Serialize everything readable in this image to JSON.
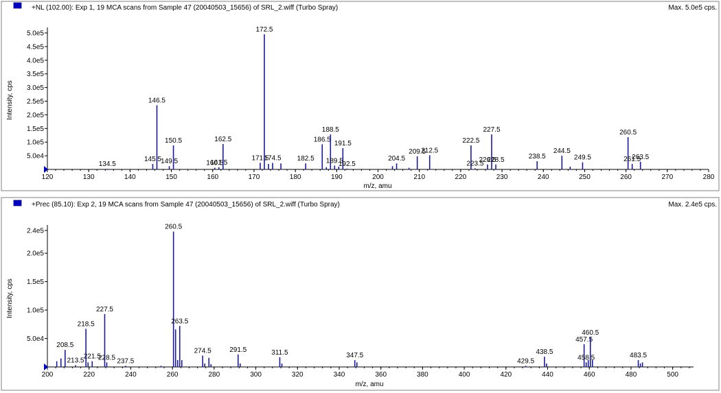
{
  "colors": {
    "stick": "#1a1a9a",
    "marker": "#0000c0",
    "panel_border": "#808080",
    "frame": "#000000"
  },
  "panels": [
    {
      "title": "+NL (102.00): Exp 1, 19 MCA scans from Sample 47 (20040503_15656) of SRL_2.wiff (Turbo Spray)",
      "max_text": "Max. 5.0e5 cps.",
      "ylabel": "Intensity, cps",
      "xlabel": "m/z, amu"
    },
    {
      "title": "+Prec (85.10): Exp 2, 19 MCA scans from Sample 47 (20040503_15656) of SRL_2.wiff (Turbo Spray)",
      "max_text": "Max. 2.4e5 cps.",
      "ylabel": "Intensity, cps",
      "xlabel": "m/z, amu"
    }
  ],
  "chart_data": [
    {
      "type": "bar",
      "subtype": "mass-spectrum-stick",
      "xlabel": "m/z, amu",
      "ylabel": "Intensity, cps",
      "xlim": [
        120,
        280
      ],
      "ylim": [
        0,
        500000
      ],
      "xticks": [
        120,
        130,
        140,
        150,
        160,
        170,
        180,
        190,
        200,
        210,
        220,
        230,
        240,
        250,
        260,
        270,
        280
      ],
      "xtick_labels": [
        "120",
        "130",
        "140",
        "150",
        "160",
        "170",
        "180",
        "190",
        "200",
        "210",
        "220",
        "230",
        "240",
        "250",
        "260",
        "270",
        "280"
      ],
      "yticks": [
        50000,
        100000,
        150000,
        200000,
        250000,
        300000,
        350000,
        400000,
        450000,
        500000
      ],
      "ytick_labels": [
        "5.0e4",
        "1.0e5",
        "1.5e5",
        "2.0e5",
        "2.5e5",
        "3.0e5",
        "3.5e5",
        "4.0e5",
        "4.5e5",
        "5.0e5"
      ],
      "peaks": [
        {
          "x": 134.5,
          "y": 2000,
          "label": "134.5"
        },
        {
          "x": 145.5,
          "y": 20000,
          "label": "145.5"
        },
        {
          "x": 146.5,
          "y": 235000,
          "label": "146.5"
        },
        {
          "x": 149.5,
          "y": 12000,
          "label": "149.5"
        },
        {
          "x": 150.5,
          "y": 88000,
          "label": "150.5"
        },
        {
          "x": 160.5,
          "y": 6000,
          "label": "160.5"
        },
        {
          "x": 161.5,
          "y": 8000,
          "label": "161.5"
        },
        {
          "x": 162.5,
          "y": 93000,
          "label": "162.5"
        },
        {
          "x": 171.5,
          "y": 24000,
          "label": "171.5"
        },
        {
          "x": 172.5,
          "y": 495000,
          "label": "172.5"
        },
        {
          "x": 173.5,
          "y": 20000,
          "label": ""
        },
        {
          "x": 174.5,
          "y": 24000,
          "label": "174.5"
        },
        {
          "x": 176.5,
          "y": 22000,
          "label": ""
        },
        {
          "x": 182.5,
          "y": 22000,
          "label": "182.5"
        },
        {
          "x": 186.5,
          "y": 92000,
          "label": "186.5"
        },
        {
          "x": 187.5,
          "y": 8000,
          "label": ""
        },
        {
          "x": 188.5,
          "y": 128000,
          "label": "188.5"
        },
        {
          "x": 189.5,
          "y": 14000,
          "label": "189.5"
        },
        {
          "x": 190.5,
          "y": 10000,
          "label": ""
        },
        {
          "x": 191.5,
          "y": 78000,
          "label": "191.5"
        },
        {
          "x": 192.5,
          "y": 3000,
          "label": "192.5"
        },
        {
          "x": 203.5,
          "y": 12000,
          "label": ""
        },
        {
          "x": 204.5,
          "y": 22000,
          "label": "204.5"
        },
        {
          "x": 207.5,
          "y": 6000,
          "label": ""
        },
        {
          "x": 209.5,
          "y": 48000,
          "label": "209.5"
        },
        {
          "x": 212.5,
          "y": 52000,
          "label": "212.5"
        },
        {
          "x": 222.5,
          "y": 88000,
          "label": "222.5"
        },
        {
          "x": 223.5,
          "y": 4000,
          "label": "223.5"
        },
        {
          "x": 226.5,
          "y": 18000,
          "label": "226.5"
        },
        {
          "x": 227.5,
          "y": 128000,
          "label": "227.5"
        },
        {
          "x": 228.5,
          "y": 18000,
          "label": "228.5"
        },
        {
          "x": 238.5,
          "y": 30000,
          "label": "238.5"
        },
        {
          "x": 244.5,
          "y": 50000,
          "label": "244.5"
        },
        {
          "x": 246.5,
          "y": 10000,
          "label": ""
        },
        {
          "x": 249.5,
          "y": 26000,
          "label": "249.5"
        },
        {
          "x": 260.5,
          "y": 118000,
          "label": "260.5"
        },
        {
          "x": 261.5,
          "y": 20000,
          "label": "261.5"
        },
        {
          "x": 263.5,
          "y": 28000,
          "label": "263.5"
        }
      ]
    },
    {
      "type": "bar",
      "subtype": "mass-spectrum-stick",
      "xlabel": "m/z, amu",
      "ylabel": "Intensity, cps",
      "xlim": [
        200,
        510
      ],
      "ylim": [
        0,
        240000
      ],
      "xticks": [
        200,
        220,
        240,
        260,
        280,
        300,
        320,
        340,
        360,
        380,
        400,
        420,
        440,
        460,
        480,
        500
      ],
      "xtick_labels": [
        "200",
        "220",
        "240",
        "260",
        "280",
        "300",
        "320",
        "340",
        "360",
        "380",
        "400",
        "420",
        "440",
        "460",
        "480",
        "500"
      ],
      "yticks": [
        50000,
        100000,
        150000,
        200000,
        240000
      ],
      "ytick_labels": [
        "5.0e4",
        "1.0e5",
        "1.5e5",
        "2.0e5",
        "2.4e5"
      ],
      "peaks": [
        {
          "x": 204.5,
          "y": 10000,
          "label": ""
        },
        {
          "x": 206.5,
          "y": 15000,
          "label": ""
        },
        {
          "x": 208.5,
          "y": 30000,
          "label": "208.5"
        },
        {
          "x": 213.5,
          "y": 3000,
          "label": "213.5"
        },
        {
          "x": 218.5,
          "y": 67000,
          "label": "218.5"
        },
        {
          "x": 219.5,
          "y": 8000,
          "label": ""
        },
        {
          "x": 221.5,
          "y": 10000,
          "label": "221.5"
        },
        {
          "x": 227.5,
          "y": 93000,
          "label": "227.5"
        },
        {
          "x": 228.5,
          "y": 8000,
          "label": "228.5"
        },
        {
          "x": 237.5,
          "y": 2000,
          "label": "237.5"
        },
        {
          "x": 254.5,
          "y": 2000,
          "label": ""
        },
        {
          "x": 260.5,
          "y": 238000,
          "label": "260.5"
        },
        {
          "x": 261.5,
          "y": 66000,
          "label": ""
        },
        {
          "x": 262.5,
          "y": 12000,
          "label": ""
        },
        {
          "x": 263.5,
          "y": 72000,
          "label": "263.5"
        },
        {
          "x": 264.5,
          "y": 12000,
          "label": ""
        },
        {
          "x": 274.5,
          "y": 20000,
          "label": "274.5"
        },
        {
          "x": 275.5,
          "y": 6000,
          "label": ""
        },
        {
          "x": 277.5,
          "y": 16000,
          "label": ""
        },
        {
          "x": 278.5,
          "y": 5000,
          "label": ""
        },
        {
          "x": 291.5,
          "y": 22000,
          "label": "291.5"
        },
        {
          "x": 292.5,
          "y": 6000,
          "label": ""
        },
        {
          "x": 311.5,
          "y": 17000,
          "label": "311.5"
        },
        {
          "x": 312.5,
          "y": 6000,
          "label": ""
        },
        {
          "x": 347.5,
          "y": 12000,
          "label": "347.5"
        },
        {
          "x": 348.5,
          "y": 8000,
          "label": ""
        },
        {
          "x": 429.5,
          "y": 2000,
          "label": "429.5"
        },
        {
          "x": 438.5,
          "y": 18000,
          "label": "438.5"
        },
        {
          "x": 439.5,
          "y": 6000,
          "label": ""
        },
        {
          "x": 457.5,
          "y": 40000,
          "label": "457.5"
        },
        {
          "x": 458.5,
          "y": 8000,
          "label": "458.5"
        },
        {
          "x": 459.5,
          "y": 12000,
          "label": ""
        },
        {
          "x": 460.5,
          "y": 52000,
          "label": "460.5"
        },
        {
          "x": 461.5,
          "y": 12000,
          "label": ""
        },
        {
          "x": 483.5,
          "y": 12000,
          "label": "483.5"
        },
        {
          "x": 484.5,
          "y": 6000,
          "label": ""
        },
        {
          "x": 485.5,
          "y": 8000,
          "label": ""
        }
      ]
    }
  ]
}
